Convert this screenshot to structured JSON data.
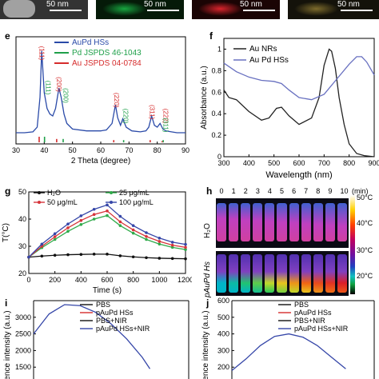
{
  "top_strip": {
    "scale_bars": [
      "50 nm",
      "50 nm",
      "50 nm",
      "50 nm"
    ],
    "tile_colors": [
      "#bdbdbd",
      "#18a640",
      "#d8242c",
      "#7d6b2c"
    ]
  },
  "panel_labels": {
    "e": "e",
    "f": "f",
    "g": "g",
    "h": "h",
    "i": "i",
    "j": "j"
  },
  "chart_data": [
    {
      "panel": "e",
      "type": "line",
      "xlabel": "2 Theta (degree)",
      "ylabel": "",
      "xlim": [
        30,
        90
      ],
      "xticks": [
        30,
        40,
        50,
        60,
        70,
        80,
        90
      ],
      "legend": [
        "AuPd HSs",
        "Pd JSPDS 46-1043",
        "Au JSPDS 04-0784"
      ],
      "legend_colors": [
        "#2a4aa8",
        "#1fa04a",
        "#d62c2c"
      ],
      "series": [
        {
          "name": "AuPd HSs",
          "color": "#2a4aa8",
          "x": [
            30,
            33,
            36,
            37.5,
            38.5,
            39.1,
            40,
            41,
            42,
            43,
            44,
            45.2,
            46,
            47,
            48,
            50,
            55,
            60,
            62,
            64,
            65.2,
            66,
            67,
            67.8,
            69,
            71,
            74,
            76,
            77,
            78,
            79,
            80,
            81,
            82,
            83,
            85,
            87,
            90
          ],
          "y": [
            0.12,
            0.12,
            0.13,
            0.18,
            0.5,
            1.0,
            0.55,
            0.38,
            0.32,
            0.3,
            0.38,
            0.6,
            0.5,
            0.32,
            0.22,
            0.16,
            0.14,
            0.14,
            0.15,
            0.22,
            0.42,
            0.28,
            0.2,
            0.27,
            0.18,
            0.14,
            0.13,
            0.14,
            0.18,
            0.3,
            0.2,
            0.18,
            0.22,
            0.16,
            0.14,
            0.13,
            0.12,
            0.12
          ]
        }
      ],
      "reference_lines": [
        {
          "name": "Pd JSPDS 46-1043",
          "color": "#1fa04a",
          "x": [
            40.1,
            46.7,
            68.1,
            82.1
          ],
          "h": [
            0.5,
            0.3,
            0.2,
            0.2
          ]
        },
        {
          "name": "Au JSPDS 04-0784",
          "color": "#d62c2c",
          "x": [
            38.2,
            44.4,
            64.6,
            77.5,
            81.7
          ],
          "h": [
            0.5,
            0.3,
            0.2,
            0.2,
            0.1
          ]
        }
      ],
      "peak_labels": [
        {
          "text": "(111)",
          "color": "#d62c2c",
          "x": 38.3,
          "y": 1.05
        },
        {
          "text": "(111)",
          "color": "#1fa04a",
          "x": 40.6,
          "y": 0.68
        },
        {
          "text": "(200)",
          "color": "#d62c2c",
          "x": 44.5,
          "y": 0.72
        },
        {
          "text": "(200)",
          "color": "#1fa04a",
          "x": 46.8,
          "y": 0.6
        },
        {
          "text": "(220)",
          "color": "#d62c2c",
          "x": 64.8,
          "y": 0.55
        },
        {
          "text": "(220)",
          "color": "#1fa04a",
          "x": 68.0,
          "y": 0.38
        },
        {
          "text": "(311)",
          "color": "#d62c2c",
          "x": 77.4,
          "y": 0.42
        },
        {
          "text": "(222)",
          "color": "#d62c2c",
          "x": 82.2,
          "y": 0.38
        },
        {
          "text": "(311)",
          "color": "#1fa04a",
          "x": 82.2,
          "y": 0.28
        }
      ],
      "ylim": [
        0,
        1.15
      ]
    },
    {
      "panel": "f",
      "type": "line",
      "xlabel": "Wavelength (nm)",
      "ylabel": "Absorbance (a.u.)",
      "xlim": [
        300,
        900
      ],
      "ylim": [
        0,
        1.1
      ],
      "xticks": [
        300,
        400,
        500,
        600,
        700,
        800,
        900
      ],
      "yticks": [
        0,
        0.2,
        0.4,
        0.6,
        0.8,
        1
      ],
      "ytick_labels": [
        "0",
        "0.2",
        "0.4",
        "0.6",
        "0.8",
        "1"
      ],
      "series": [
        {
          "name": "Au NRs",
          "color": "#222222",
          "x": [
            300,
            320,
            350,
            400,
            450,
            480,
            510,
            530,
            560,
            600,
            650,
            680,
            700,
            720,
            730,
            745,
            760,
            780,
            800,
            830,
            860,
            900
          ],
          "y": [
            0.62,
            0.55,
            0.53,
            0.42,
            0.34,
            0.36,
            0.45,
            0.46,
            0.38,
            0.3,
            0.36,
            0.55,
            0.85,
            1.0,
            0.98,
            0.82,
            0.55,
            0.3,
            0.12,
            0.03,
            0.01,
            0.0
          ]
        },
        {
          "name": "Au Pd HSs",
          "color": "#6870c0",
          "x": [
            300,
            350,
            400,
            450,
            500,
            530,
            560,
            600,
            650,
            700,
            750,
            800,
            830,
            850,
            870,
            900
          ],
          "y": [
            0.87,
            0.79,
            0.74,
            0.71,
            0.7,
            0.68,
            0.62,
            0.55,
            0.53,
            0.58,
            0.72,
            0.86,
            0.93,
            0.93,
            0.88,
            0.76
          ]
        }
      ]
    },
    {
      "panel": "g",
      "type": "line",
      "xlabel": "Time (s)",
      "ylabel": "T(°C)",
      "xlim": [
        0,
        1200
      ],
      "ylim": [
        20,
        50
      ],
      "xticks": [
        0,
        200,
        400,
        600,
        800,
        1000,
        1200
      ],
      "yticks": [
        20,
        30,
        40,
        50
      ],
      "series": [
        {
          "name": "H₂O",
          "color": "#111111",
          "x": [
            0,
            100,
            200,
            300,
            400,
            500,
            600,
            700,
            800,
            900,
            1000,
            1100,
            1200
          ],
          "y": [
            26,
            26.4,
            26.7,
            26.9,
            27.0,
            27.1,
            27.1,
            26.5,
            26.1,
            25.8,
            25.6,
            25.5,
            25.4
          ]
        },
        {
          "name": "25 μg/mL",
          "color": "#2faa4a",
          "x": [
            0,
            100,
            200,
            300,
            400,
            500,
            600,
            700,
            800,
            900,
            1000,
            1100,
            1200
          ],
          "y": [
            26,
            29.5,
            32.5,
            35.5,
            38.0,
            40.0,
            41.3,
            37.6,
            34.8,
            32.5,
            30.8,
            29.6,
            28.8
          ]
        },
        {
          "name": "50 μg/mL",
          "color": "#d6343a",
          "x": [
            0,
            100,
            200,
            300,
            400,
            500,
            600,
            700,
            800,
            900,
            1000,
            1100,
            1200
          ],
          "y": [
            26,
            30.0,
            33.5,
            36.8,
            39.5,
            41.7,
            43.0,
            39.0,
            36.0,
            33.6,
            31.8,
            30.4,
            29.6
          ]
        },
        {
          "name": "100 μg/mL",
          "color": "#3546a8",
          "x": [
            0,
            100,
            200,
            300,
            400,
            500,
            600,
            700,
            800,
            900,
            1000,
            1100,
            1200
          ],
          "y": [
            26,
            30.8,
            34.6,
            38.2,
            41.2,
            43.6,
            45.2,
            41.0,
            37.6,
            35.0,
            33.0,
            31.5,
            30.7
          ]
        }
      ]
    },
    {
      "panel": "i",
      "type": "line",
      "xlabel": "",
      "ylabel": "ence intensity (a.u.)",
      "ylim": [
        1000,
        3500
      ],
      "yticks": [
        1000,
        1500,
        2000,
        2500,
        3000
      ],
      "legend": [
        "PBS",
        "pAuPd HSs",
        "PBS+NIR",
        "pAuPd HSs+NIR"
      ],
      "legend_colors": [
        "#111111",
        "#d62c2c",
        "#111111",
        "#3546a8"
      ],
      "series": [
        {
          "name": "pAuPd HSs+NIR",
          "color": "#3546a8",
          "x": [
            0,
            0.1,
            0.2,
            0.3,
            0.4,
            0.5,
            0.6,
            0.7,
            0.75
          ],
          "y": [
            2500,
            3100,
            3380,
            3350,
            3150,
            2800,
            2350,
            1800,
            1450
          ]
        }
      ]
    },
    {
      "panel": "j",
      "type": "line",
      "xlabel": "",
      "ylabel": "ence intensity (a.u.)",
      "ylim": [
        100,
        600
      ],
      "yticks": [
        100,
        200,
        300,
        400,
        500,
        600
      ],
      "legend": [
        "PBS",
        "pAuPd HSs",
        "PBS+NIR",
        "pAuPd HSs+NIR"
      ],
      "legend_colors": [
        "#111111",
        "#d62c2c",
        "#111111",
        "#3546a8"
      ],
      "series": [
        {
          "name": "pAuPd HSs+NIR",
          "color": "#3546a8",
          "x": [
            0,
            0.1,
            0.2,
            0.3,
            0.4,
            0.5,
            0.6,
            0.7,
            0.8
          ],
          "y": [
            180,
            250,
            330,
            385,
            400,
            380,
            330,
            260,
            190
          ]
        }
      ]
    }
  ],
  "heatmap_h": {
    "time_labels": [
      "0",
      "1",
      "2",
      "3",
      "4",
      "5",
      "6",
      "7",
      "8",
      "9",
      "10"
    ],
    "time_unit": "(min)",
    "row_labels": [
      "H₂O",
      "pAuPd Hs"
    ],
    "colorbar_labels": [
      "50°C",
      "40°C",
      "30°C",
      "20°C"
    ],
    "water_level": 0.0,
    "sample_levels": [
      0.0,
      0.08,
      0.2,
      0.32,
      0.45,
      0.55,
      0.65,
      0.75,
      0.85,
      0.93,
      1.0
    ]
  }
}
